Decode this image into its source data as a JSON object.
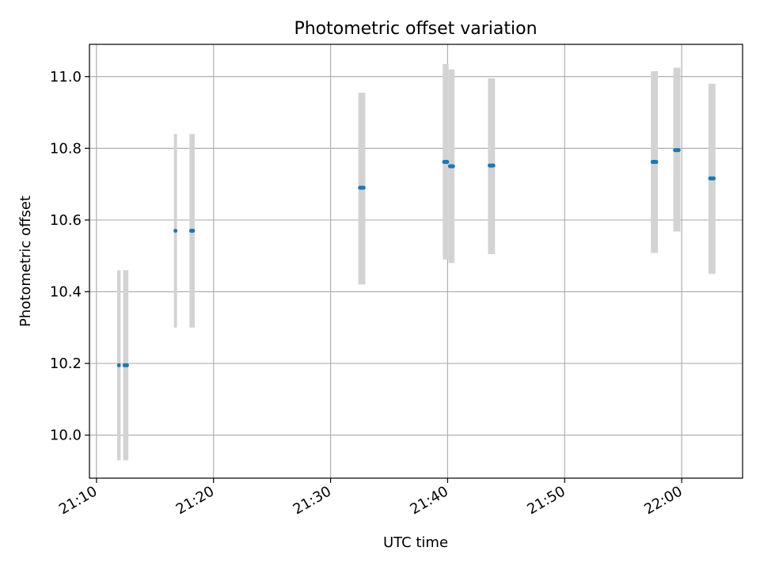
{
  "chart_data": {
    "type": "scatter",
    "title": "Photometric offset variation",
    "xlabel": "UTC time",
    "ylabel": "Photometric offset",
    "x_tick_labels": [
      "21:10",
      "21:20",
      "21:30",
      "21:40",
      "21:50",
      "22:00"
    ],
    "x_ticks_minutes": [
      0,
      10,
      20,
      30,
      40,
      50
    ],
    "xlim_minutes": [
      -0.6,
      55.2
    ],
    "y_ticks": [
      10.0,
      10.2,
      10.4,
      10.6,
      10.8,
      11.0
    ],
    "y_tick_labels": [
      "10.0",
      "10.2",
      "10.4",
      "10.6",
      "10.8",
      "11.0"
    ],
    "ylim": [
      9.88,
      11.09
    ],
    "grid": true,
    "colors": {
      "points": "#1f77b4",
      "error_bars": "#d3d3d3",
      "grid": "#b0b0b0"
    },
    "points": [
      {
        "x": "21:11:55",
        "y": 10.195,
        "ymin": 9.93,
        "ymax": 10.46,
        "errwidth": 0.3,
        "w": 0.25
      },
      {
        "x": "21:12:30",
        "y": 10.195,
        "ymin": 9.93,
        "ymax": 10.46,
        "errwidth": 0.45,
        "w": 0.55
      },
      {
        "x": "21:16:45",
        "y": 10.57,
        "ymin": 10.3,
        "ymax": 10.84,
        "errwidth": 0.25,
        "w": 0.2
      },
      {
        "x": "21:18:10",
        "y": 10.57,
        "ymin": 10.3,
        "ymax": 10.84,
        "errwidth": 0.45,
        "w": 0.5
      },
      {
        "x": "21:32:40",
        "y": 10.69,
        "ymin": 10.42,
        "ymax": 10.955,
        "errwidth": 0.6,
        "w": 0.65
      },
      {
        "x": "21:39:50",
        "y": 10.762,
        "ymin": 10.49,
        "ymax": 11.035,
        "errwidth": 0.5,
        "w": 0.6
      },
      {
        "x": "21:40:20",
        "y": 10.75,
        "ymin": 10.48,
        "ymax": 11.02,
        "errwidth": 0.5,
        "w": 0.6
      },
      {
        "x": "21:43:45",
        "y": 10.752,
        "ymin": 10.505,
        "ymax": 10.995,
        "errwidth": 0.6,
        "w": 0.65
      },
      {
        "x": "21:57:40",
        "y": 10.762,
        "ymin": 10.508,
        "ymax": 11.015,
        "errwidth": 0.6,
        "w": 0.65
      },
      {
        "x": "21:59:35",
        "y": 10.795,
        "ymin": 10.568,
        "ymax": 11.025,
        "errwidth": 0.6,
        "w": 0.65
      },
      {
        "x": "22:02:35",
        "y": 10.716,
        "ymin": 10.45,
        "ymax": 10.98,
        "errwidth": 0.6,
        "w": 0.65
      }
    ]
  }
}
